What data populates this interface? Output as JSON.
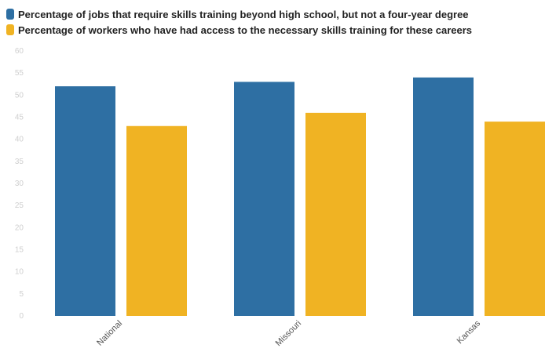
{
  "chart_data": {
    "type": "bar",
    "title": "",
    "xlabel": "",
    "ylabel": "",
    "categories": [
      "National",
      "Missouri",
      "Kansas"
    ],
    "series": [
      {
        "name": "Percentage of jobs that require skills training beyond high school, but not a four-year degree",
        "color": "#2e6fa3",
        "values": [
          52,
          53,
          54
        ]
      },
      {
        "name": "Percentage of workers who have had access to the necessary skills training for these careers",
        "color": "#f0b323",
        "values": [
          43,
          46,
          44
        ]
      }
    ],
    "ylim": [
      0,
      60
    ],
    "yticks": [
      "0",
      "5",
      "10",
      "15",
      "20",
      "25",
      "30",
      "35",
      "40",
      "45",
      "50",
      "55",
      "60"
    ],
    "grid": false,
    "legend_position": "top-left"
  }
}
